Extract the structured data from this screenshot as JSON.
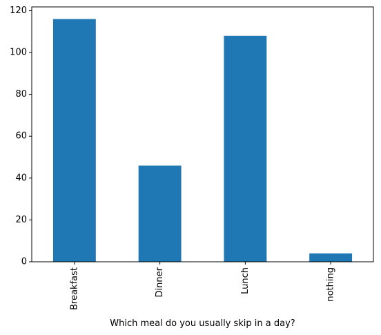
{
  "chart_data": {
    "type": "bar",
    "title": "",
    "xlabel": "Which meal do you usually skip in a day?",
    "ylabel": "",
    "categories": [
      "Breakfast",
      "Dinner",
      "Lunch",
      "nothing"
    ],
    "values": [
      116,
      46,
      108,
      4
    ],
    "ylim": [
      0,
      121.8
    ],
    "yticks": [
      0,
      20,
      40,
      60,
      80,
      100,
      120
    ],
    "grid": false,
    "legend": "none",
    "bar_color": "#1f77b4",
    "x_tick_rotation": "vertical"
  }
}
